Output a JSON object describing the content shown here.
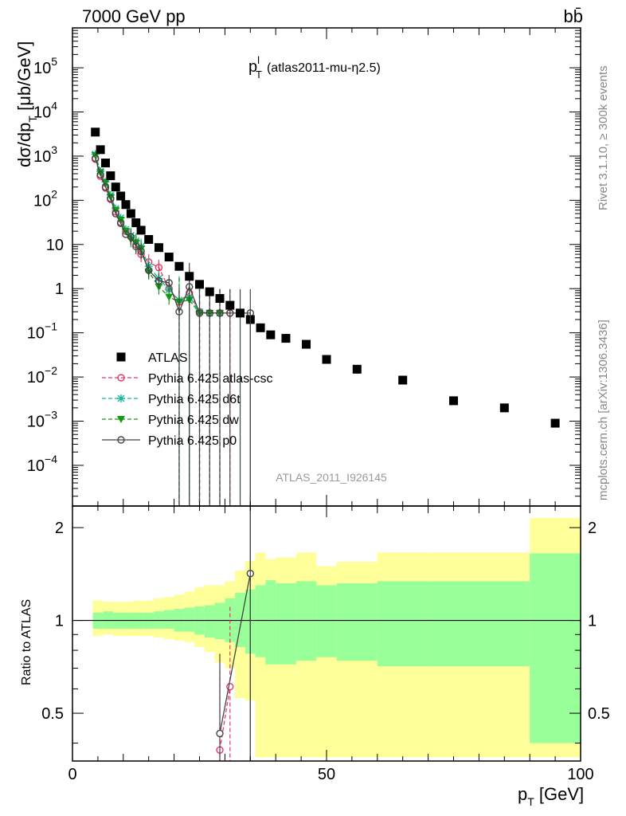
{
  "header": {
    "energy_label": "7000 GeV pp",
    "process_label": "bb̄",
    "observable_title": "p",
    "observable_sup": "l",
    "observable_sub": "T",
    "observable_desc": "(atlas2011-mu-η2.5)",
    "analysis_id": "ATLAS_2011_I926145",
    "side_label_top": "Rivet 3.1.10, ≥ 300k events",
    "side_label_bottom": "mcplots.cern.ch [arXiv:1306.3436]"
  },
  "axes": {
    "xlabel": "p",
    "xlabel_sub": "T",
    "xlabel_unit": " [GeV]",
    "ylabel_main": "dσ/dp",
    "ylabel_sub": "T",
    "ylabel_unit": " [μb/GeV]",
    "ylabel_ratio": "Ratio to ATLAS",
    "x_ticks": [
      "0",
      "50",
      "100"
    ],
    "ratio_ticks": [
      "0.5",
      "1",
      "2"
    ],
    "y_tick_labels": [
      {
        "v": 100000.0,
        "base": "10",
        "exp": "5"
      },
      {
        "v": 10000.0,
        "base": "10",
        "exp": "4"
      },
      {
        "v": 1000.0,
        "base": "10",
        "exp": "3"
      },
      {
        "v": 100.0,
        "base": "10",
        "exp": "2"
      },
      {
        "v": 10,
        "base": "10",
        "exp": ""
      },
      {
        "v": 1,
        "base": "1",
        "exp": ""
      },
      {
        "v": 0.1,
        "base": "10",
        "exp": "−1"
      },
      {
        "v": 0.01,
        "base": "10",
        "exp": "−2"
      },
      {
        "v": 0.001,
        "base": "10",
        "exp": "−3"
      },
      {
        "v": 0.0001,
        "base": "10",
        "exp": "−4"
      }
    ]
  },
  "legend": {
    "position": "lower-left",
    "entries": [
      {
        "label": "ATLAS",
        "color": "#000000",
        "marker": "square",
        "style": "none"
      },
      {
        "label": "Pythia 6.425 atlas-csc",
        "color": "#ee3366",
        "marker": "circle-open",
        "style": "dashed"
      },
      {
        "label": "Pythia 6.425 d6t",
        "color": "#11bb99",
        "marker": "star",
        "style": "dashed"
      },
      {
        "label": "Pythia 6.425 dw",
        "color": "#119911",
        "marker": "triangle-down",
        "style": "dashed"
      },
      {
        "label": "Pythia 6.425 p0",
        "color": "#444444",
        "marker": "circle-open",
        "style": "solid"
      }
    ]
  },
  "chart_data": [
    {
      "type": "scatter",
      "panel": "main",
      "y_scale": "log",
      "xlim": [
        0,
        100
      ],
      "ylim": [
        1.2e-05,
        800000.0
      ],
      "grid": false,
      "series": [
        {
          "name": "ATLAS",
          "x": [
            4.5,
            5.5,
            6.5,
            7.5,
            8.5,
            9.5,
            10.5,
            11.5,
            12.5,
            13.5,
            15,
            17,
            19,
            21,
            23,
            25,
            27,
            29,
            31,
            33,
            35,
            37,
            39,
            42,
            46,
            50,
            56,
            65,
            75,
            85,
            95
          ],
          "y": [
            3500,
            1400,
            700,
            360,
            200,
            125,
            80,
            50,
            31,
            21,
            13,
            8.5,
            5.2,
            3.2,
            1.9,
            1.25,
            0.85,
            0.6,
            0.42,
            0.28,
            0.2,
            0.13,
            0.09,
            0.075,
            0.055,
            0.025,
            0.015,
            0.0085,
            0.0029,
            0.002,
            0.0009
          ]
        },
        {
          "name": "Pythia 6.425 atlas-csc",
          "x": [
            4.5,
            5.5,
            6.5,
            7.5,
            8.5,
            9.5,
            10.5,
            11.5,
            12.5,
            13.5,
            15,
            17,
            19,
            21,
            23,
            25,
            27,
            29,
            31
          ],
          "y": [
            850,
            350,
            190,
            105,
            55,
            32,
            20,
            15,
            10,
            6,
            4,
            3,
            1,
            0.5,
            0.8,
            0.3,
            0.28,
            0.28,
            0.28
          ]
        },
        {
          "name": "Pythia 6.425 d6t",
          "x": [
            4.5,
            5.5,
            6.5,
            7.5,
            8.5,
            9.5,
            10.5,
            11.5,
            12.5,
            13.5,
            15,
            17,
            19,
            21,
            23,
            25,
            27,
            29
          ],
          "y": [
            1100,
            450,
            260,
            130,
            65,
            40,
            22,
            16,
            12,
            9,
            3.2,
            1.7,
            0.95,
            0.55,
            0.65,
            0.3,
            0.28,
            0.28
          ]
        },
        {
          "name": "Pythia 6.425 dw",
          "x": [
            4.5,
            5.5,
            6.5,
            7.5,
            8.5,
            9.5,
            10.5,
            11.5,
            12.5,
            13.5,
            15,
            17,
            19,
            21,
            23,
            25,
            27,
            29
          ],
          "y": [
            1050,
            430,
            250,
            120,
            60,
            36,
            20,
            13,
            11,
            8,
            2.4,
            1.1,
            0.65,
            0.5,
            0.55,
            0.28,
            0.28,
            0.28
          ]
        },
        {
          "name": "Pythia 6.425 p0",
          "x": [
            4.5,
            5.5,
            6.5,
            7.5,
            8.5,
            9.5,
            10.5,
            11.5,
            12.5,
            13.5,
            15,
            17,
            19,
            21,
            23,
            25,
            27,
            29,
            31,
            33,
            35
          ],
          "y": [
            900,
            380,
            200,
            110,
            50,
            30,
            17,
            15,
            9,
            7,
            2.6,
            1.5,
            1.35,
            0.3,
            1.1,
            0.28,
            0.28,
            0.28,
            0.28,
            0.28,
            0.28
          ]
        }
      ]
    },
    {
      "type": "line",
      "panel": "ratio",
      "y_scale": "log",
      "ylim": [
        0.35,
        2.35
      ],
      "reference_line": 1,
      "bands": {
        "edges": [
          4,
          6,
          8,
          10,
          12,
          14,
          16,
          18,
          20,
          22,
          24,
          26,
          28,
          30,
          32,
          34,
          36,
          38,
          40,
          44,
          48,
          52,
          60,
          70,
          90,
          100
        ],
        "inner_lo": [
          0.94,
          0.94,
          0.94,
          0.94,
          0.94,
          0.94,
          0.94,
          0.94,
          0.92,
          0.92,
          0.9,
          0.88,
          0.87,
          0.85,
          0.82,
          0.78,
          0.76,
          0.72,
          0.72,
          0.74,
          0.76,
          0.74,
          0.71,
          0.71,
          0.4
        ],
        "inner_hi": [
          1.06,
          1.07,
          1.06,
          1.06,
          1.06,
          1.06,
          1.07,
          1.08,
          1.09,
          1.1,
          1.11,
          1.12,
          1.14,
          1.18,
          1.23,
          1.26,
          1.3,
          1.35,
          1.32,
          1.34,
          1.3,
          1.32,
          1.34,
          1.34,
          1.65
        ],
        "outer_lo": [
          0.89,
          0.9,
          0.89,
          0.89,
          0.89,
          0.89,
          0.88,
          0.87,
          0.86,
          0.85,
          0.82,
          0.79,
          0.73,
          0.7,
          0.56,
          0.55,
          0.36,
          0.36,
          0.36,
          0.36,
          0.36,
          0.36,
          0.36,
          0.36,
          0.36
        ],
        "outer_hi": [
          1.16,
          1.15,
          1.15,
          1.15,
          1.16,
          1.16,
          1.18,
          1.19,
          1.21,
          1.24,
          1.28,
          1.3,
          1.3,
          1.34,
          1.45,
          1.56,
          1.66,
          1.58,
          1.6,
          1.66,
          1.5,
          1.55,
          1.66,
          1.66,
          2.15
        ]
      },
      "series": [
        {
          "name": "Pythia 6.425 atlas-csc",
          "x": [
            29,
            31
          ],
          "y": [
            0.38,
            0.61
          ]
        },
        {
          "name": "Pythia 6.425 p0",
          "x": [
            29,
            35
          ],
          "y": [
            0.43,
            1.42
          ]
        }
      ]
    }
  ]
}
